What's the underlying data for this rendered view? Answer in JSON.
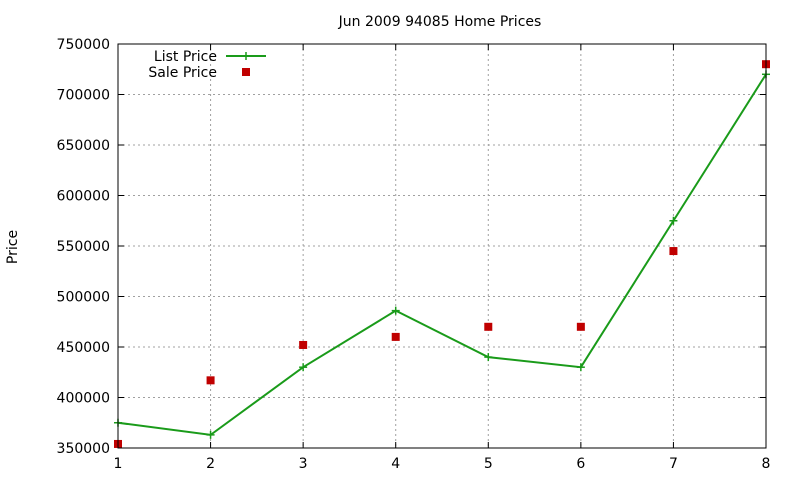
{
  "chart_data": {
    "type": "line",
    "title": "Jun 2009 94085 Home Prices",
    "xlabel": "",
    "ylabel": "Price",
    "x": [
      1,
      2,
      3,
      4,
      5,
      6,
      7,
      8
    ],
    "xlim": [
      1,
      8
    ],
    "ylim": [
      350000,
      750000
    ],
    "x_ticks": [
      "1",
      "2",
      "3",
      "4",
      "5",
      "6",
      "7",
      "8"
    ],
    "y_ticks": [
      "350000",
      "400000",
      "450000",
      "500000",
      "550000",
      "600000",
      "650000",
      "700000",
      "750000"
    ],
    "grid": true,
    "legend_position": "top-left",
    "series": [
      {
        "name": "List Price",
        "style": "line-with-plus-markers",
        "color": "#1a9b1a",
        "values": [
          375000,
          363000,
          430000,
          486000,
          440000,
          430000,
          575000,
          720000
        ]
      },
      {
        "name": "Sale Price",
        "style": "square-markers",
        "color": "#c00000",
        "values": [
          354000,
          417000,
          452000,
          460000,
          470000,
          470000,
          545000,
          730000
        ]
      }
    ]
  }
}
